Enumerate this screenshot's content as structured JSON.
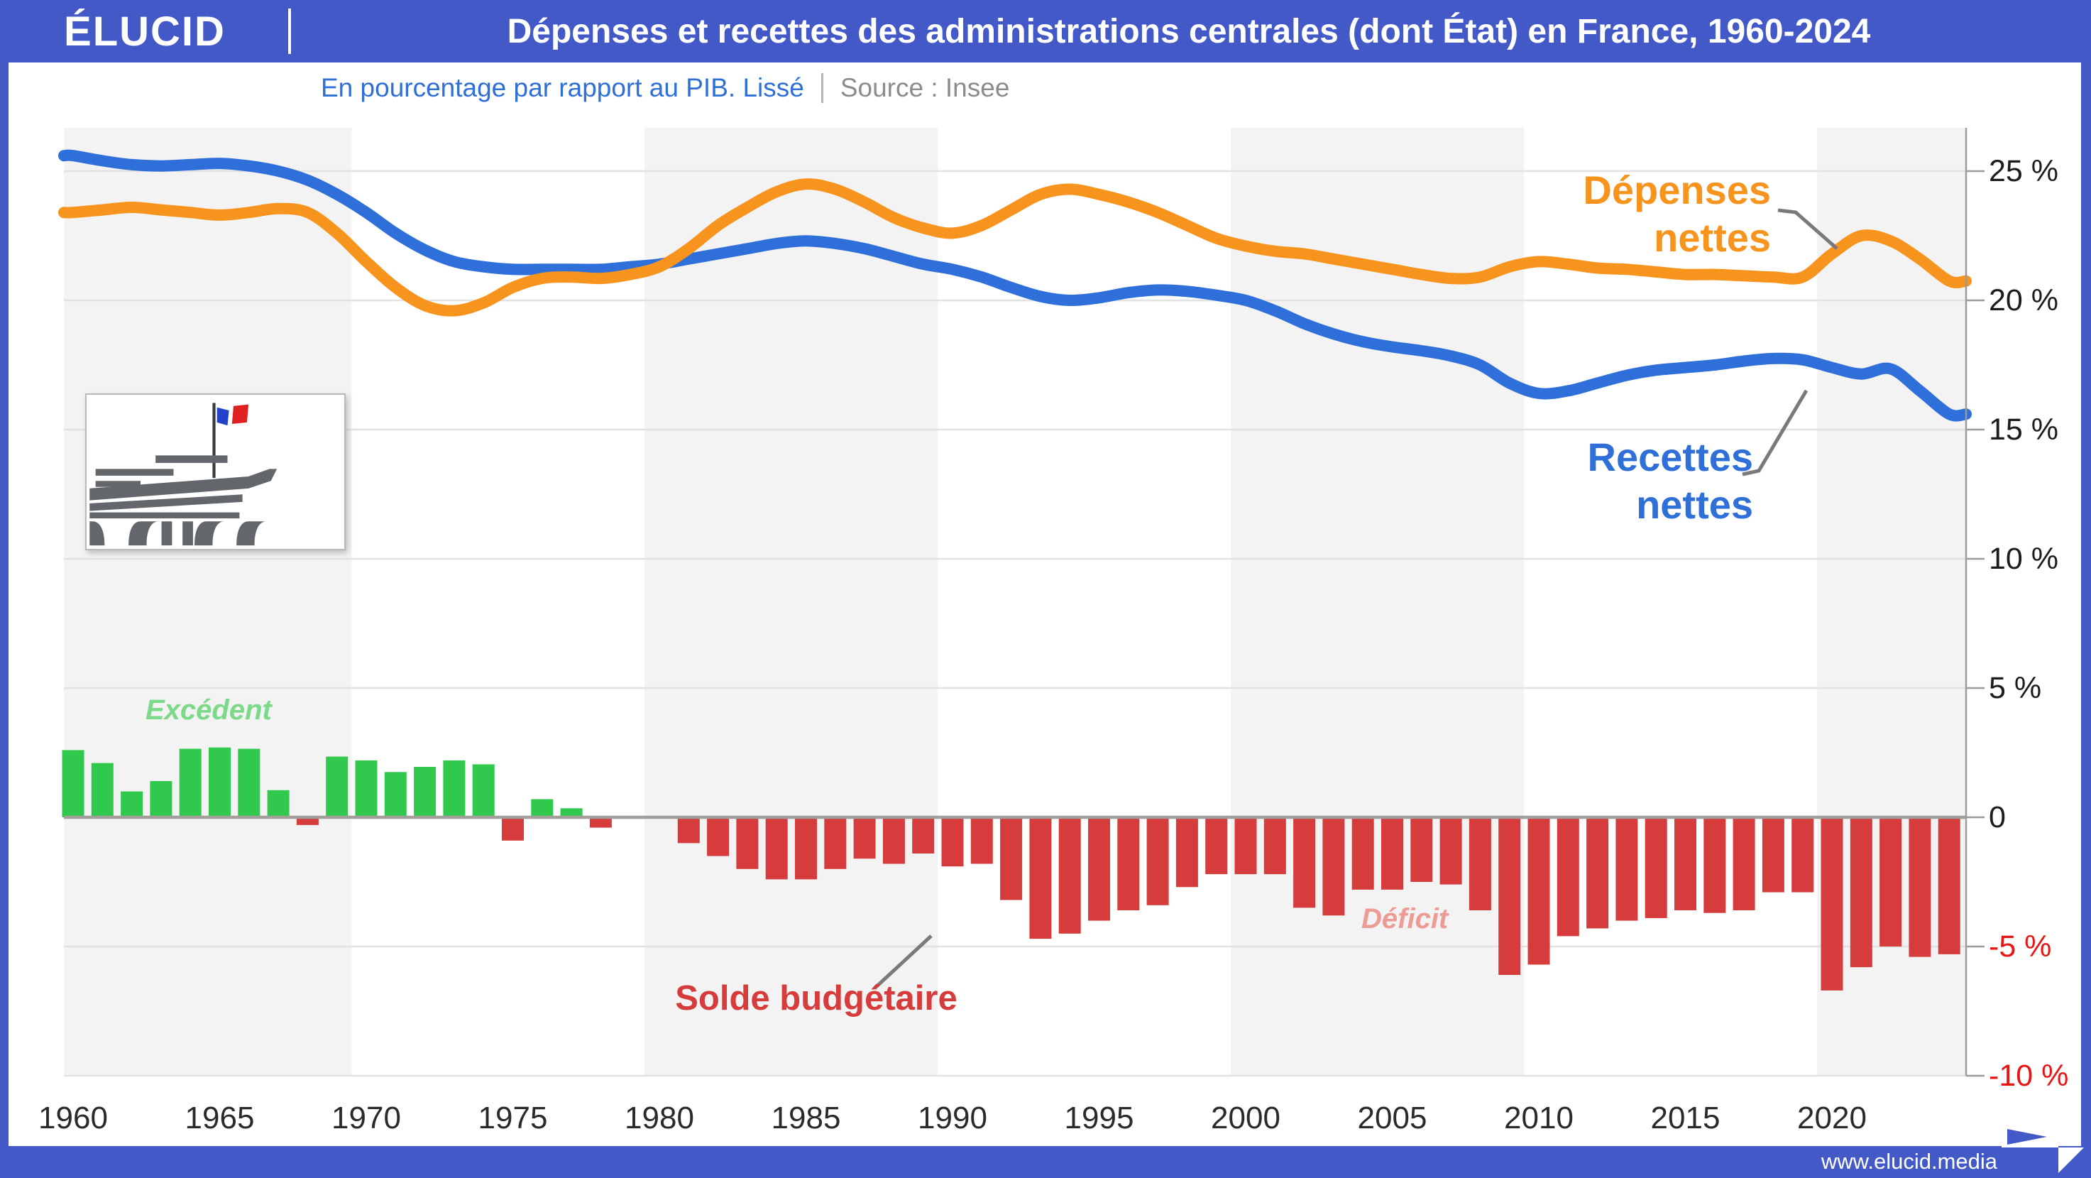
{
  "header": {
    "logo": "ÉLUCID",
    "title": "Dépenses et recettes des administrations centrales (dont État) en France, 1960-2024"
  },
  "subtitle": {
    "text": "En pourcentage par rapport au PIB. Lissé",
    "source": "Source : Insee"
  },
  "footer": {
    "url": "www.elucid.media"
  },
  "colors": {
    "brand_blue": "#4459c8",
    "expenses_orange": "#f7941e",
    "revenues_blue": "#2f6fd9",
    "surplus_green": "#30c94e",
    "surplus_green_soft": "#7cd98a",
    "deficit_red": "#d63c3c",
    "deficit_red_soft": "#ec9b95",
    "negative_tick_red": "#e91515",
    "grid_gray": "#e2e2e2",
    "zero_line_gray": "#a39e99",
    "band_gray": "#f3f3f3"
  },
  "chart_data": {
    "type": "combo",
    "title": "Dépenses et recettes des administrations centrales (dont État) en France, 1960-2024",
    "subtitle": "En pourcentage par rapport au PIB. Lissé",
    "source": "Source : Insee",
    "x": [
      1960,
      1961,
      1962,
      1963,
      1964,
      1965,
      1966,
      1967,
      1968,
      1969,
      1970,
      1971,
      1972,
      1973,
      1974,
      1975,
      1976,
      1977,
      1978,
      1979,
      1980,
      1981,
      1982,
      1983,
      1984,
      1985,
      1986,
      1987,
      1988,
      1989,
      1990,
      1991,
      1992,
      1993,
      1994,
      1995,
      1996,
      1997,
      1998,
      1999,
      2000,
      2001,
      2002,
      2003,
      2004,
      2005,
      2006,
      2007,
      2008,
      2009,
      2010,
      2011,
      2012,
      2013,
      2014,
      2015,
      2016,
      2017,
      2018,
      2019,
      2020,
      2021,
      2022,
      2023,
      2024
    ],
    "series": [
      {
        "name": "Dépenses nettes",
        "type": "line",
        "color": "#f7941e",
        "values": [
          23.4,
          23.5,
          23.6,
          23.5,
          23.4,
          23.3,
          23.4,
          23.55,
          23.4,
          22.6,
          21.5,
          20.5,
          19.8,
          19.6,
          19.9,
          20.5,
          20.85,
          20.9,
          20.85,
          21.0,
          21.3,
          22.0,
          22.9,
          23.6,
          24.2,
          24.5,
          24.3,
          23.8,
          23.2,
          22.8,
          22.6,
          22.9,
          23.5,
          24.1,
          24.3,
          24.1,
          23.8,
          23.4,
          22.9,
          22.4,
          22.1,
          21.9,
          21.8,
          21.6,
          21.4,
          21.2,
          21.0,
          20.85,
          20.9,
          21.3,
          21.5,
          21.4,
          21.25,
          21.2,
          21.1,
          21.0,
          21.0,
          20.95,
          20.9,
          20.9,
          21.8,
          22.5,
          22.3,
          21.6,
          20.75
        ]
      },
      {
        "name": "Recettes nettes",
        "type": "line",
        "color": "#2f6fd9",
        "values": [
          25.6,
          25.4,
          25.25,
          25.2,
          25.25,
          25.3,
          25.2,
          25.0,
          24.65,
          24.1,
          23.4,
          22.6,
          21.95,
          21.5,
          21.3,
          21.2,
          21.2,
          21.2,
          21.2,
          21.3,
          21.4,
          21.6,
          21.8,
          22.0,
          22.2,
          22.3,
          22.2,
          22.0,
          21.7,
          21.4,
          21.2,
          20.9,
          20.5,
          20.15,
          20.0,
          20.1,
          20.3,
          20.4,
          20.35,
          20.2,
          20.0,
          19.6,
          19.1,
          18.7,
          18.4,
          18.2,
          18.05,
          17.85,
          17.5,
          16.8,
          16.4,
          16.5,
          16.8,
          17.1,
          17.3,
          17.4,
          17.5,
          17.65,
          17.75,
          17.7,
          17.4,
          17.15,
          17.35,
          16.5,
          15.6
        ]
      },
      {
        "name": "Solde budgétaire",
        "type": "bar",
        "color_positive": "#30c94e",
        "color_negative": "#d63c3c",
        "values": [
          2.6,
          2.1,
          1.0,
          1.4,
          2.65,
          2.7,
          2.65,
          1.05,
          -0.3,
          2.35,
          2.2,
          1.75,
          1.95,
          2.2,
          2.05,
          -0.9,
          0.7,
          0.35,
          -0.4,
          0,
          0,
          -1.0,
          -1.5,
          -2.0,
          -2.4,
          -2.4,
          -2.0,
          -1.6,
          -1.8,
          -1.4,
          -1.9,
          -1.8,
          -3.2,
          -4.7,
          -4.5,
          -4.0,
          -3.6,
          -3.4,
          -2.7,
          -2.2,
          -2.2,
          -2.2,
          -3.5,
          -3.8,
          -2.8,
          -2.8,
          -2.5,
          -2.6,
          -3.6,
          -6.1,
          -5.7,
          -4.6,
          -4.3,
          -4.0,
          -3.9,
          -3.6,
          -3.7,
          -3.6,
          -2.9,
          -2.9,
          -6.7,
          -5.8,
          -5.0,
          -5.4,
          -5.3
        ]
      }
    ],
    "labels": {
      "expenses_line1": "Dépenses",
      "expenses_line2": "nettes",
      "revenues_line1": "Recettes",
      "revenues_line2": "nettes",
      "surplus": "Excédent",
      "deficit": "Déficit",
      "balance": "Solde budgétaire"
    },
    "y_ticks": [
      {
        "value": 25,
        "label": "25 %"
      },
      {
        "value": 20,
        "label": "20 %"
      },
      {
        "value": 15,
        "label": "15 %"
      },
      {
        "value": 10,
        "label": "10 %"
      },
      {
        "value": 5,
        "label": "5 %"
      },
      {
        "value": 0,
        "label": "0"
      },
      {
        "value": -5,
        "label": "-5 %",
        "negative": true
      },
      {
        "value": -10,
        "label": "-10 %",
        "negative": true
      }
    ],
    "x_ticks": [
      1960,
      1965,
      1970,
      1975,
      1980,
      1985,
      1990,
      1995,
      2000,
      2005,
      2010,
      2015,
      2020
    ],
    "ylim": [
      -10,
      26.7
    ],
    "xlim": [
      1959.69,
      2024.55
    ],
    "grid": true,
    "background_bands": "alternating decades shaded light gray",
    "legend_position": "labels next to lines (right side)"
  }
}
